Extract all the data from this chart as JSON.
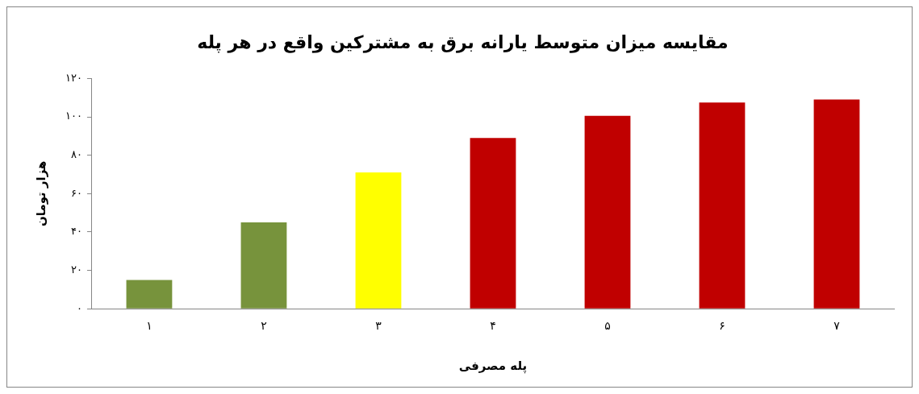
{
  "chart_data": {
    "type": "bar",
    "title": "مقایسه میزان متوسط یارانه برق به مشترکین واقع در هر پله",
    "xlabel": "پله مصرفی",
    "ylabel": "هزار تومان",
    "categories": [
      "۱",
      "۲",
      "۳",
      "۴",
      "۵",
      "۶",
      "۷"
    ],
    "values": [
      15,
      45,
      71,
      89,
      100.5,
      107.5,
      109
    ],
    "colors": [
      "#77933c",
      "#77933c",
      "#ffff00",
      "#c00000",
      "#c00000",
      "#c00000",
      "#c00000"
    ],
    "ylim": [
      0,
      120
    ],
    "yticks": [
      {
        "value": 0,
        "label": "۰"
      },
      {
        "value": 20,
        "label": "۲۰"
      },
      {
        "value": 40,
        "label": "۴۰"
      },
      {
        "value": 60,
        "label": "۶۰"
      },
      {
        "value": 80,
        "label": "۸۰"
      },
      {
        "value": 100,
        "label": "۱۰۰"
      },
      {
        "value": 120,
        "label": "۱۲۰"
      }
    ],
    "grid": false,
    "legend": false
  }
}
